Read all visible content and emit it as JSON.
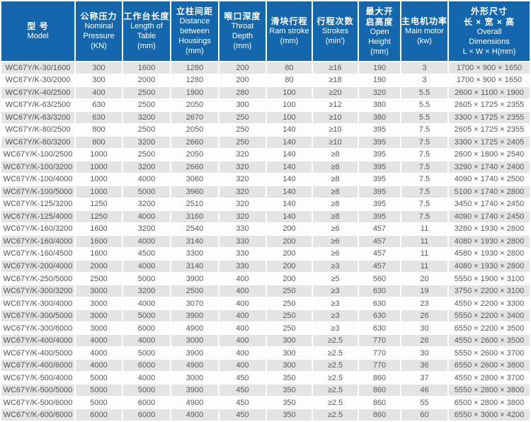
{
  "accent_color": "#1467ac",
  "stripe_color": "#e4e4e4",
  "table": {
    "columns": [
      {
        "id": "model",
        "cn": [
          "型 号"
        ],
        "en": [
          "Model"
        ]
      },
      {
        "id": "pressure",
        "cn": [
          "公称压力"
        ],
        "en": [
          "Nominal",
          "Pressure",
          "(KN)"
        ]
      },
      {
        "id": "table-length",
        "cn": [
          "工作台长度"
        ],
        "en": [
          "Length of",
          "Table",
          "(mm)"
        ]
      },
      {
        "id": "housings",
        "cn": [
          "立柱间距"
        ],
        "en": [
          "Distance",
          "between",
          "Housings",
          "(mm)"
        ]
      },
      {
        "id": "throat",
        "cn": [
          "喉口深度"
        ],
        "en": [
          "Throat",
          "Depth",
          "(mm)"
        ]
      },
      {
        "id": "ram-stroke",
        "cn": [
          "滑块行程"
        ],
        "en": [
          "Ram stroke",
          "(mm)"
        ]
      },
      {
        "id": "strokes",
        "cn": [
          "行程次数"
        ],
        "en": [
          "Strokes",
          "(min')"
        ]
      },
      {
        "id": "open-height",
        "cn": [
          "最大开",
          "启高度"
        ],
        "en": [
          "Open",
          "Height",
          "(mm)"
        ]
      },
      {
        "id": "main-motor",
        "cn": [
          "主电机功率"
        ],
        "en": [
          "Main motor",
          "(kw)"
        ]
      },
      {
        "id": "dimensions",
        "cn": [
          "外形尺寸",
          "长 × 宽 × 高"
        ],
        "en": [
          "Overall",
          "Dimensions",
          "L × W × H(mm)"
        ]
      }
    ],
    "rows": [
      [
        "WC67Y/K-30/1600",
        "300",
        "1600",
        "1280",
        "200",
        "80",
        "≥16",
        "190",
        "3",
        "1700 × 900 × 1650"
      ],
      [
        "WC67Y/K-30/2000",
        "300",
        "2000",
        "1280",
        "200",
        "80",
        "≥18",
        "190",
        "3",
        "1700 × 900 × 1650"
      ],
      [
        "WC67Y/K-40/2500",
        "400",
        "2500",
        "1900",
        "280",
        "100",
        "≥20",
        "320",
        "5.5",
        "2600 × 1100 × 1900"
      ],
      [
        "WC67Y/K-63/2500",
        "630",
        "2500",
        "2050",
        "300",
        "100",
        "≥12",
        "380",
        "5.5",
        "2605 × 1725 × 2355"
      ],
      [
        "WC67Y/K-63/3200",
        "630",
        "3200",
        "2670",
        "250",
        "100",
        "≥10",
        "380",
        "5.5",
        "3300 × 1725 × 2355"
      ],
      [
        "WC67Y/K-80/2500",
        "800",
        "2500",
        "2050",
        "250",
        "140",
        "≥10",
        "395",
        "7.5",
        "2605 × 1725 × 2355"
      ],
      [
        "WC67Y/K-80/3200",
        "800",
        "3200",
        "2660",
        "250",
        "140",
        "≥10",
        "395",
        "7.5",
        "3300 × 1725 × 2405"
      ],
      [
        "WC67Y/K-100/2500",
        "1000",
        "2500",
        "2050",
        "320",
        "140",
        "≥8",
        "395",
        "7.5",
        "2600 × 1800 × 2540"
      ],
      [
        "WC67Y/K-100/3200",
        "1000",
        "3200",
        "2660",
        "320",
        "140",
        "≥8",
        "395",
        "7.5",
        "3290 × 1740 × 2400"
      ],
      [
        "WC67Y/K-100/4000",
        "1000",
        "4000",
        "3060",
        "320",
        "140",
        "≥8",
        "395",
        "7.5",
        "4090 × 1740 × 2500"
      ],
      [
        "WC67Y/K-100/5000",
        "1000",
        "5000",
        "3960",
        "320",
        "140",
        "≥8",
        "395",
        "7.5",
        "5100 × 1740 × 2800"
      ],
      [
        "WC67Y/K-125/3200",
        "1250",
        "3200",
        "2510",
        "320",
        "140",
        "≥8",
        "395",
        "7.5",
        "3450 × 1740 × 2450"
      ],
      [
        "WC67Y/K-125/4000",
        "1250",
        "4000",
        "3160",
        "320",
        "140",
        "≥8",
        "395",
        "7.5",
        "4090 × 1740 × 2450"
      ],
      [
        "WC67Y/K-160/3200",
        "1600",
        "3200",
        "2540",
        "330",
        "200",
        "≥6",
        "457",
        "11",
        "3280 × 1930 × 2800"
      ],
      [
        "WC67Y/K-160/4000",
        "1600",
        "4000",
        "3140",
        "330",
        "200",
        "≥6",
        "457",
        "11",
        "4080 × 1930 × 2800"
      ],
      [
        "WC67Y/K-160/4500",
        "1600",
        "4500",
        "3300",
        "330",
        "200",
        "≥6",
        "457",
        "11",
        "4580 × 1930 × 2800"
      ],
      [
        "WC67Y/K-200/4000",
        "2000",
        "4000",
        "3140",
        "330",
        "200",
        "≥3",
        "457",
        "11",
        "4080 × 1930 × 2800"
      ],
      [
        "WC67Y/K-250/5000",
        "2500",
        "5000",
        "3900",
        "400",
        "200",
        "≥5",
        "560",
        "20",
        "5550 × 1900 × 3100"
      ],
      [
        "WC67Y/K-300/3200",
        "3000",
        "3200",
        "2500",
        "400",
        "250",
        "≥3",
        "630",
        "19",
        "3750 × 2200 × 3100"
      ],
      [
        "WC67Y/K-300/4000",
        "3000",
        "4000",
        "3070",
        "400",
        "250",
        "≥3",
        "630",
        "23",
        "4550 × 2200 × 3300"
      ],
      [
        "WC67Y/K-300/5000",
        "3000",
        "5000",
        "3900",
        "400",
        "250",
        "≥3",
        "630",
        "26",
        "5550 × 2200 × 3400"
      ],
      [
        "WC67Y/K-300/6000",
        "3000",
        "6000",
        "4900",
        "400",
        "250",
        "≥3",
        "630",
        "30",
        "6550 × 2200 × 3500"
      ],
      [
        "WC67Y/K-400/4000",
        "4000",
        "4000",
        "3000",
        "400",
        "300",
        "≥2.5",
        "770",
        "26",
        "4550 × 2600 × 3500"
      ],
      [
        "WC67Y/K-400/5000",
        "4000",
        "5000",
        "3900",
        "400",
        "300",
        "≥2.5",
        "770",
        "30",
        "5550 × 2600 × 3700"
      ],
      [
        "WC67Y/K-400/6000",
        "4000",
        "6000",
        "4900",
        "400",
        "300",
        "≥2.5",
        "770",
        "36",
        "6550 × 2600 × 3800"
      ],
      [
        "WC67Y/K-500/4000",
        "5000",
        "4000",
        "3000",
        "450",
        "350",
        "≥2.5",
        "860",
        "37",
        "4550 × 2800 × 3700"
      ],
      [
        "WC67Y/K-500/5000",
        "5000",
        "5000",
        "3900",
        "450",
        "350",
        "≥2.5",
        "860",
        "46",
        "5550 × 2800 × 3800"
      ],
      [
        "WC67Y/K-500/6000",
        "5000",
        "6000",
        "4900",
        "450",
        "350",
        "≥2.5",
        "860",
        "55",
        "6500 × 2800 × 3800"
      ],
      [
        "WC67Y/K-600/6000",
        "6000",
        "6000",
        "4900",
        "450",
        "350",
        "≥2.5",
        "860",
        "60",
        "6550 × 3000 × 4200"
      ]
    ]
  }
}
